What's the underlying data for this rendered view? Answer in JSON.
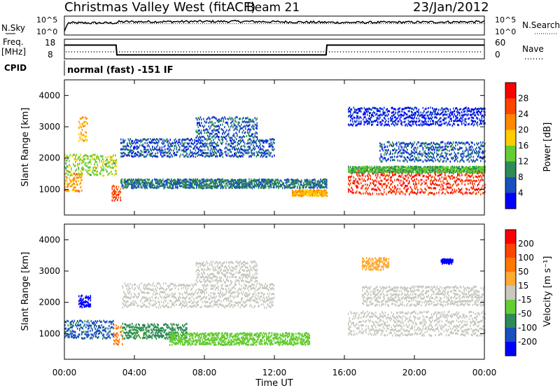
{
  "header": {
    "station": "Christmas Valley West (fitACF)",
    "beam": "Beam 21",
    "date": "23/Jan/2012"
  },
  "noise_panel": {
    "left_label": "N.Sky",
    "right_label": "N.Search",
    "left_ticks": [
      "10^5",
      "10^0"
    ],
    "right_ticks": [
      "10^5",
      "10^0"
    ]
  },
  "freq_panel": {
    "left_label_1": "Freq.",
    "left_label_2": "[MHz]",
    "right_label": "Nave",
    "left_ticks": [
      "18",
      "8"
    ],
    "right_ticks": [
      "60",
      "0"
    ]
  },
  "cpid_panel": {
    "label": "CPID",
    "text": "normal (fast) -151 IF"
  },
  "x_axis": {
    "label": "Time UT",
    "ticks": [
      "00:00",
      "04:00",
      "08:00",
      "12:00",
      "16:00",
      "20:00",
      "00:00"
    ]
  },
  "power_panel": {
    "ylabel": "Slant Range [km]",
    "yticks": [
      "1000",
      "2000",
      "3000",
      "4000"
    ],
    "colorbar_label": "Power [dB]",
    "colorbar_ticks": [
      "4",
      "8",
      "12",
      "16",
      "20",
      "24",
      "28"
    ],
    "colors": [
      "#0000ff",
      "#1a4fbf",
      "#2e8b57",
      "#66cc33",
      "#ffcc00",
      "#ff8800",
      "#ff4400",
      "#ff0000"
    ]
  },
  "velocity_panel": {
    "ylabel": "Slant Range [km]",
    "yticks": [
      "1000",
      "2000",
      "3000",
      "4000"
    ],
    "colorbar_label": "Velocity [m s⁻¹]",
    "colorbar_ticks": [
      "200",
      "100",
      "50",
      "15",
      "-15",
      "-50",
      "-100",
      "-200"
    ],
    "colors": [
      "#0000ff",
      "#1a4fbf",
      "#2e8b57",
      "#66cc33",
      "#c8c8c0",
      "#ffaa33",
      "#ff7700",
      "#ff4400",
      "#ff0000"
    ]
  },
  "chart_data": [
    {
      "type": "line",
      "title": "N.Sky / N.Search",
      "x": [
        0,
        0.2,
        3,
        3.1,
        10,
        16,
        24
      ],
      "series": [
        {
          "values": [
            1,
            3.2,
            3.2,
            3.5,
            3.6,
            3.3,
            3.5
          ]
        }
      ],
      "xlim": [
        0,
        24
      ],
      "ylim": [
        0,
        5
      ],
      "ylabel": "N.Sky"
    },
    {
      "type": "line",
      "title": "Freq. [MHz]",
      "x": [
        0,
        2.95,
        3.0,
        14.95,
        15.0,
        24
      ],
      "series": [
        {
          "values": [
            15,
            15,
            10,
            10,
            15,
            15
          ]
        }
      ],
      "xlim": [
        0,
        24
      ],
      "ylim": [
        8,
        18
      ],
      "ylabel": "Freq. [MHz]"
    },
    {
      "type": "heatmap",
      "title": "Power [dB]",
      "xlabel": "Time UT",
      "ylabel": "Slant Range [km]",
      "xlim": [
        0,
        24
      ],
      "ylim": [
        180,
        4500
      ],
      "zlim": [
        0,
        30
      ],
      "z_label": "Power [dB]",
      "bands": [
        {
          "t0": 0.0,
          "t1": 1.0,
          "r0": 900,
          "r1": 1500,
          "z": 20
        },
        {
          "t0": 0.8,
          "t1": 1.3,
          "r0": 2500,
          "r1": 3300,
          "z": 18
        },
        {
          "t0": 0.0,
          "t1": 3.0,
          "r0": 1400,
          "r1": 2100,
          "z": 14
        },
        {
          "t0": 2.7,
          "t1": 3.2,
          "r0": 600,
          "r1": 1100,
          "z": 24
        },
        {
          "t0": 3.2,
          "t1": 15.0,
          "r0": 1000,
          "r1": 1300,
          "z": 8
        },
        {
          "t0": 3.2,
          "t1": 12.0,
          "r0": 2000,
          "r1": 2600,
          "z": 6
        },
        {
          "t0": 7.5,
          "t1": 11.0,
          "r0": 2600,
          "r1": 3300,
          "z": 6
        },
        {
          "t0": 13.0,
          "t1": 15.0,
          "r0": 750,
          "r1": 950,
          "z": 18
        },
        {
          "t0": 16.2,
          "t1": 24.0,
          "r0": 800,
          "r1": 1600,
          "z": 26
        },
        {
          "t0": 16.2,
          "t1": 24.0,
          "r0": 1500,
          "r1": 1700,
          "z": 12
        },
        {
          "t0": 18.0,
          "t1": 24.0,
          "r0": 1850,
          "r1": 2500,
          "z": 6
        },
        {
          "t0": 16.2,
          "t1": 24.0,
          "r0": 3000,
          "r1": 3600,
          "z": 4
        }
      ]
    },
    {
      "type": "heatmap",
      "title": "Velocity [m s⁻¹]",
      "xlabel": "Time UT",
      "ylabel": "Slant Range [km]",
      "xlim": [
        0,
        24
      ],
      "ylim": [
        180,
        4500
      ],
      "zlim": [
        -200,
        200
      ],
      "z_label": "Velocity [m s⁻¹]",
      "bands": [
        {
          "t0": 0.0,
          "t1": 2.8,
          "r0": 800,
          "r1": 1400,
          "z": -120
        },
        {
          "t0": 0.8,
          "t1": 1.5,
          "r0": 1800,
          "r1": 2200,
          "z": -180
        },
        {
          "t0": 2.8,
          "t1": 3.3,
          "r0": 600,
          "r1": 1300,
          "z": 100
        },
        {
          "t0": 3.3,
          "t1": 7.0,
          "r0": 800,
          "r1": 1300,
          "z": -80
        },
        {
          "t0": 6.0,
          "t1": 14.0,
          "r0": 600,
          "r1": 1000,
          "z": -40
        },
        {
          "t0": 3.3,
          "t1": 12.0,
          "r0": 1800,
          "r1": 2600,
          "z": 0
        },
        {
          "t0": 7.5,
          "t1": 11.0,
          "r0": 2600,
          "r1": 3300,
          "z": 0
        },
        {
          "t0": 16.2,
          "t1": 24.0,
          "r0": 900,
          "r1": 1700,
          "z": -5
        },
        {
          "t0": 17.0,
          "t1": 24.0,
          "r0": 1850,
          "r1": 2500,
          "z": 5
        },
        {
          "t0": 17.0,
          "t1": 18.5,
          "r0": 3000,
          "r1": 3400,
          "z": 40
        },
        {
          "t0": 21.5,
          "t1": 22.2,
          "r0": 3200,
          "r1": 3350,
          "z": -200
        }
      ]
    }
  ]
}
